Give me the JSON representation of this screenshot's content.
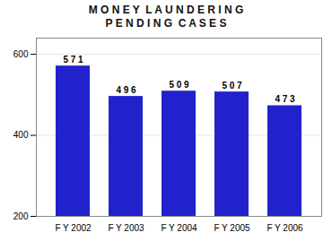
{
  "chart_data": {
    "type": "bar",
    "title": "M O N E Y  L A U N D E R I N G",
    "subtitle": "P E N D I N G  C A S E S",
    "categories": [
      "F Y 2002",
      "F Y 2003",
      "F Y 2004",
      "F Y 2005",
      "F Y 2006"
    ],
    "values": [
      571,
      496,
      509,
      507,
      473
    ],
    "value_labels": [
      "5 7 1",
      "4 9 6",
      "5 0 9",
      "5 0 7",
      "4 7 3"
    ],
    "data_labels": true,
    "color": "#2222cc",
    "ylim": [
      200,
      640
    ],
    "yticks": [
      200,
      400,
      600
    ],
    "grid": true
  }
}
